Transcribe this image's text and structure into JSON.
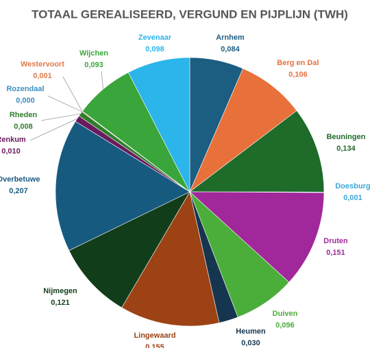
{
  "chart_data": {
    "type": "pie",
    "title": "TOTAAL GEREALISEERD, VERGUND EN PIJPLIJN (TWH)",
    "categories": [
      "Arnhem",
      "Berg en Dal",
      "Beuningen",
      "Doesburg",
      "Druten",
      "Duiven",
      "Heumen",
      "Lingewaard",
      "Nijmegen",
      "Overbetuwe",
      "Renkum",
      "Rheden",
      "Rozendaal",
      "Westervoort",
      "Wijchen",
      "Zevenaar"
    ],
    "values": [
      0.084,
      0.106,
      0.134,
      0.001,
      0.151,
      0.096,
      0.03,
      0.155,
      0.121,
      0.207,
      0.01,
      0.008,
      0.0,
      0.001,
      0.093,
      0.098
    ],
    "value_labels": [
      "0,084",
      "0,106",
      "0,134",
      "0,001",
      "0,151",
      "0,096",
      "0,030",
      "0,155",
      "0,121",
      "0,207",
      "0,010",
      "0,008",
      "0,000",
      "0,001",
      "0,093",
      "0,098"
    ],
    "colors": [
      "#1c5d82",
      "#e8703a",
      "#1e6b2a",
      "#3ba7d6",
      "#a0289a",
      "#4cae3a",
      "#16364f",
      "#9c4215",
      "#123d1a",
      "#175a80",
      "#6a1a5e",
      "#2f7d2a",
      "#3a8fc4",
      "#e07b4a",
      "#3aa53a",
      "#2bb5ea"
    ],
    "label_colors": [
      "#1c5d82",
      "#e8703a",
      "#1e6b2a",
      "#3ba7d6",
      "#a0289a",
      "#4cae3a",
      "#16364f",
      "#9c4215",
      "#123d1a",
      "#175a80",
      "#6a1a5e",
      "#2f7d2a",
      "#3a8fc4",
      "#e07b4a",
      "#3aa53a",
      "#2bb5ea"
    ]
  }
}
